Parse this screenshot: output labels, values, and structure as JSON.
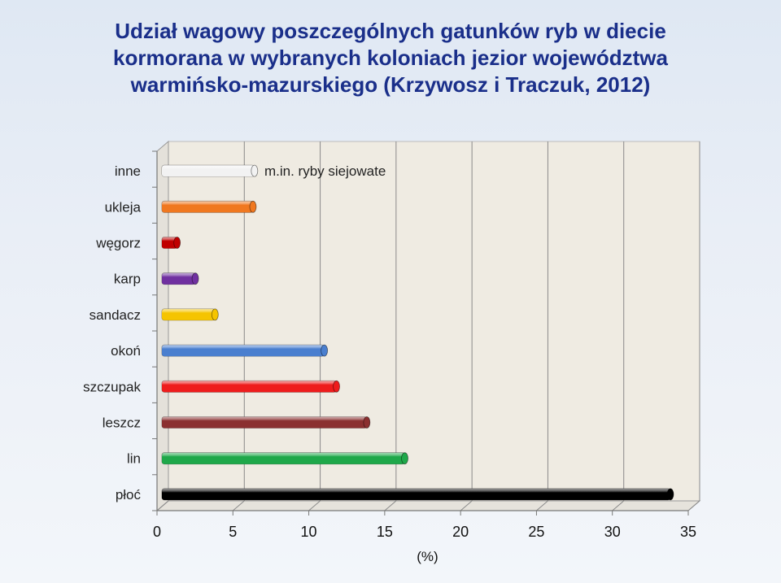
{
  "title": {
    "line1": "Udział wagowy poszczególnych gatunków ryb w diecie",
    "line2": "kormorana w wybranych koloniach jezior województwa",
    "line3": "warmińsko-mazurskiego (Krzywosz i Traczuk, 2012)"
  },
  "chart_data": {
    "type": "bar",
    "orientation": "horizontal",
    "title": "Udział wagowy poszczególnych gatunków ryb w diecie kormorana w wybranych koloniach jezior województwa warmińsko-mazurskiego (Krzywosz i Traczuk, 2012)",
    "categories": [
      "płoć",
      "lin",
      "leszcz",
      "szczupak",
      "okoń",
      "sandacz",
      "karp",
      "węgorz",
      "ukleja",
      "inne"
    ],
    "values": [
      33.5,
      16,
      13.5,
      11.5,
      10.7,
      3.5,
      2.2,
      1.0,
      6.0,
      6.1
    ],
    "colors": [
      "#000000",
      "#1fa84a",
      "#8b3030",
      "#ee1c1c",
      "#4a7fcf",
      "#f5c400",
      "#7030a0",
      "#c00000",
      "#f07820",
      "#f2f2f2"
    ],
    "xlabel": "(%)",
    "ylabel": "",
    "xlim": [
      0,
      35
    ],
    "xticks": [
      "0",
      "5",
      "10",
      "15",
      "20",
      "25",
      "30",
      "35"
    ],
    "grid": true,
    "annotation": "m.in. ryby siejowate"
  }
}
